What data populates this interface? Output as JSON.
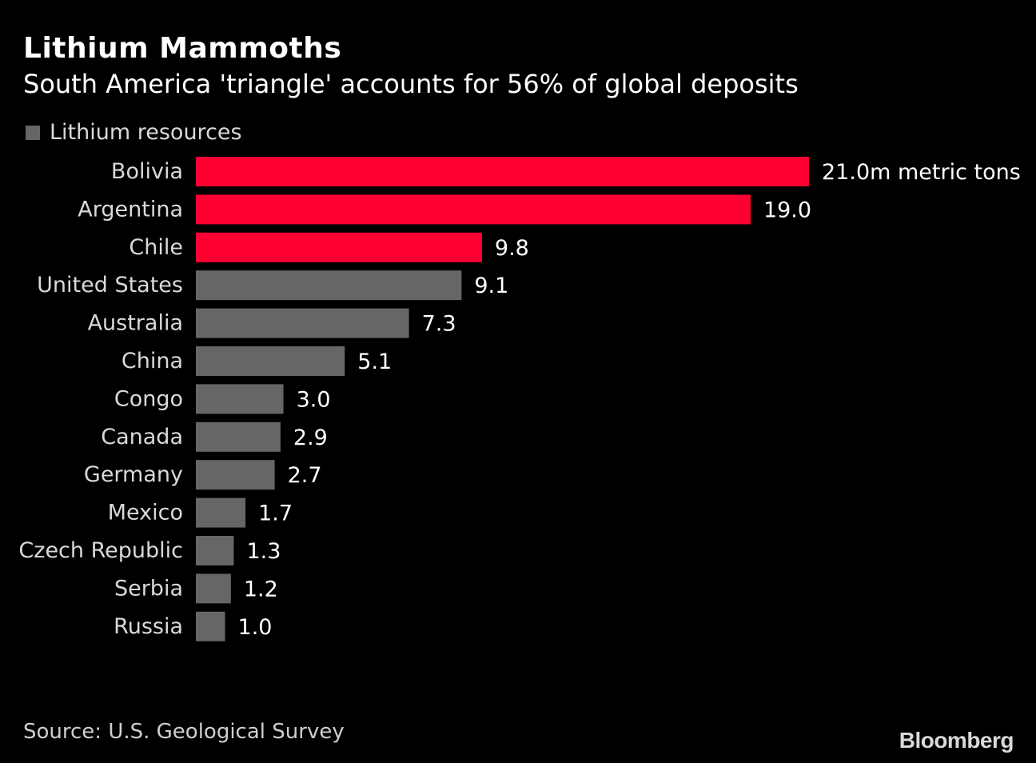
{
  "header": {
    "title": "Lithium Mammoths",
    "subtitle": "South America 'triangle' accounts for 56% of global deposits"
  },
  "legend": {
    "label": "Lithium resources",
    "color": "#666666"
  },
  "colors": {
    "highlight": "#ff0033",
    "default": "#666666"
  },
  "chart_data": {
    "type": "bar",
    "orientation": "horizontal",
    "title": "Lithium Mammoths",
    "subtitle": "South America 'triangle' accounts for 56% of global deposits",
    "xlabel": "",
    "ylabel": "",
    "unit_suffix": "m metric tons",
    "grid": false,
    "legend_position": "top-left",
    "xlim": [
      0,
      21
    ],
    "categories": [
      "Bolivia",
      "Argentina",
      "Chile",
      "United States",
      "Australia",
      "China",
      "Congo",
      "Canada",
      "Germany",
      "Mexico",
      "Czech Republic",
      "Serbia",
      "Russia"
    ],
    "values": [
      21.0,
      19.0,
      9.8,
      9.1,
      7.3,
      5.1,
      3.0,
      2.9,
      2.7,
      1.7,
      1.3,
      1.2,
      1.0
    ],
    "value_labels": [
      "21.0m metric tons",
      "19.0",
      "9.8",
      "9.1",
      "7.3",
      "5.1",
      "3.0",
      "2.9",
      "2.7",
      "1.7",
      "1.3",
      "1.2",
      "1.0"
    ],
    "highlighted": [
      "Bolivia",
      "Argentina",
      "Chile"
    ],
    "series": [
      {
        "name": "Lithium resources",
        "values": [
          21.0,
          19.0,
          9.8,
          9.1,
          7.3,
          5.1,
          3.0,
          2.9,
          2.7,
          1.7,
          1.3,
          1.2,
          1.0
        ]
      }
    ]
  },
  "footer": {
    "source": "Source: U.S. Geological Survey",
    "brand": "Bloomberg"
  }
}
